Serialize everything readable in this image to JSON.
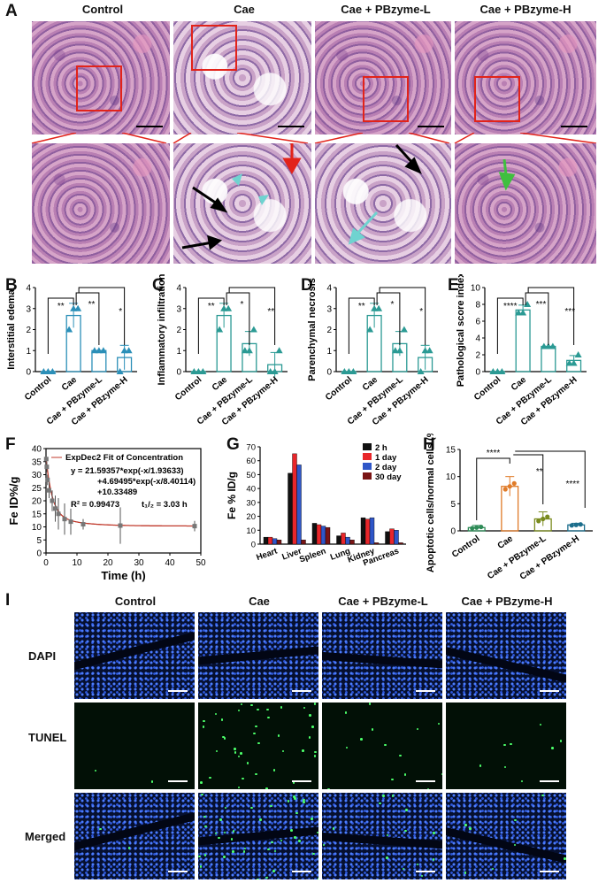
{
  "panelA": {
    "label": "A",
    "columns": [
      "Control",
      "Cae",
      "Cae + PBzyme-L",
      "Cae + PBzyme-H"
    ]
  },
  "panelB": {
    "label": "B",
    "ylabel": "Interstitial edema",
    "yticks": [
      "0",
      "1",
      "2",
      "3",
      "4"
    ],
    "categories": [
      "Control",
      "Cae",
      "Cae + PBzyme-L",
      "Cae + PBzyme-H"
    ],
    "sig": [
      "**",
      "**",
      "*"
    ]
  },
  "panelC": {
    "label": "C",
    "ylabel": "Inflammatory infiltration",
    "yticks": [
      "0",
      "1",
      "2",
      "3",
      "4"
    ],
    "categories": [
      "Control",
      "Cae",
      "Cae + PBzyme-L",
      "Cae + PBzyme-H"
    ],
    "sig": [
      "**",
      "*",
      "**"
    ]
  },
  "panelD": {
    "label": "D",
    "ylabel": "Parenchymal necrosis",
    "yticks": [
      "0",
      "1",
      "2",
      "3",
      "4"
    ],
    "categories": [
      "Control",
      "Cae",
      "Cae + PBzyme-L",
      "Cae + PBzyme-H"
    ],
    "sig": [
      "**",
      "*",
      "*"
    ]
  },
  "panelE": {
    "label": "E",
    "ylabel": "Pathological score index",
    "yticks": [
      "0",
      "2",
      "4",
      "6",
      "8",
      "10"
    ],
    "categories": [
      "Control",
      "Cae",
      "Cae + PBzyme-L",
      "Cae + PBzyme-H"
    ],
    "sig": [
      "****",
      "***",
      "***"
    ]
  },
  "panelF": {
    "label": "F",
    "ylabel": "Fe ID%/g",
    "xlabel": "Time (h)",
    "legend": "ExpDec2 Fit of Concentration",
    "eq1": "y = 21.59357*exp(-x/1.93633)",
    "eq2": "+4.69495*exp(-x/8.40114)",
    "eq3": "+10.33489",
    "r2": "R² = 0.99473",
    "thalf": "t₁/₂ = 3.03 h",
    "yticks": [
      "0",
      "5",
      "10",
      "15",
      "20",
      "25",
      "30",
      "35",
      "40"
    ],
    "xticks": [
      "0",
      "10",
      "20",
      "30",
      "40",
      "50"
    ]
  },
  "panelG": {
    "label": "G",
    "ylabel": "Fe % ID/g",
    "yticks": [
      "0",
      "10",
      "20",
      "30",
      "40",
      "50",
      "60",
      "70"
    ],
    "legend": [
      "2 h",
      "1 day",
      "2 day",
      "30 day"
    ],
    "colors": [
      "#111111",
      "#e8262a",
      "#2f56c8",
      "#7a1414"
    ]
  },
  "panelH": {
    "label": "H",
    "ylabel": "Apoptotic cells/normal cells (%)",
    "yticks": [
      "0",
      "5",
      "10",
      "15"
    ],
    "categories": [
      "Control",
      "Cae",
      "Cae + PBzyme-L",
      "Cae + PBzyme-H"
    ],
    "sig": [
      "****",
      "**",
      "****"
    ]
  },
  "panelI": {
    "label": "I",
    "columns": [
      "Control",
      "Cae",
      "Cae + PBzyme-L",
      "Cae + PBzyme-H"
    ],
    "rows": [
      "DAPI",
      "TUNEL",
      "Merged"
    ]
  },
  "chart_data": [
    {
      "type": "bar",
      "title": "",
      "ylabel": "Interstitial edema",
      "categories": [
        "Control",
        "Cae",
        "Cae + PBzyme-L",
        "Cae + PBzyme-H"
      ],
      "values": [
        0,
        2.67,
        1.0,
        0.67
      ],
      "errors": [
        0,
        0.58,
        0,
        0.58
      ],
      "ylim": [
        0,
        4
      ],
      "points": [
        [
          0,
          0,
          0
        ],
        [
          2,
          3,
          3
        ],
        [
          1,
          1,
          1
        ],
        [
          0,
          1,
          1
        ]
      ],
      "color": "#2b8fb8"
    },
    {
      "type": "bar",
      "title": "",
      "ylabel": "Inflammatory infiltration",
      "categories": [
        "Control",
        "Cae",
        "Cae + PBzyme-L",
        "Cae + PBzyme-H"
      ],
      "values": [
        0,
        2.67,
        1.33,
        0.33
      ],
      "errors": [
        0,
        0.58,
        0.58,
        0.58
      ],
      "ylim": [
        0,
        4
      ],
      "points": [
        [
          0,
          0,
          0
        ],
        [
          2,
          3,
          3
        ],
        [
          1,
          1,
          2
        ],
        [
          0,
          0,
          1
        ]
      ],
      "color": "#2b9a94"
    },
    {
      "type": "bar",
      "title": "",
      "ylabel": "Parenchymal necrosis",
      "categories": [
        "Control",
        "Cae",
        "Cae + PBzyme-L",
        "Cae + PBzyme-H"
      ],
      "values": [
        0,
        2.67,
        1.33,
        0.67
      ],
      "errors": [
        0,
        0.58,
        0.58,
        0.58
      ],
      "ylim": [
        0,
        4
      ],
      "points": [
        [
          0,
          0,
          0
        ],
        [
          2,
          3,
          3
        ],
        [
          1,
          1,
          2
        ],
        [
          0,
          1,
          1
        ]
      ],
      "color": "#2b9a94"
    },
    {
      "type": "bar",
      "title": "",
      "ylabel": "Pathological score index",
      "categories": [
        "Control",
        "Cae",
        "Cae + PBzyme-L",
        "Cae + PBzyme-H"
      ],
      "values": [
        0,
        7.33,
        3.0,
        1.33
      ],
      "errors": [
        0,
        0.58,
        0,
        0.58
      ],
      "ylim": [
        0,
        10
      ],
      "points": [
        [
          0,
          0,
          0
        ],
        [
          7,
          7,
          8
        ],
        [
          3,
          3,
          3
        ],
        [
          1,
          1,
          2
        ]
      ],
      "color": "#2b9a94"
    },
    {
      "type": "scatter",
      "title": "",
      "xlabel": "Time (h)",
      "ylabel": "Fe ID%/g",
      "x": [
        0.08,
        0.25,
        0.5,
        1,
        2,
        3,
        4,
        6,
        8,
        12,
        24,
        48
      ],
      "y": [
        36,
        33,
        28,
        24,
        20,
        17,
        15,
        13,
        12,
        11,
        10.5,
        10.3
      ],
      "errors": [
        1,
        2,
        2,
        3,
        4,
        5,
        6,
        6,
        5,
        2,
        7,
        2
      ],
      "xlim": [
        0,
        50
      ],
      "ylim": [
        0,
        40
      ]
    },
    {
      "type": "bar",
      "title": "",
      "ylabel": "Fe % ID/g",
      "categories": [
        "Heart",
        "Liver",
        "Spleen",
        "Lung",
        "Kidney",
        "Pancreas"
      ],
      "series": [
        {
          "name": "2 h",
          "values": [
            5,
            51,
            15,
            6,
            19,
            9
          ]
        },
        {
          "name": "1 day",
          "values": [
            5,
            65,
            14,
            8,
            18,
            11
          ]
        },
        {
          "name": "2 day",
          "values": [
            4,
            57,
            13,
            5,
            19,
            10
          ]
        },
        {
          "name": "30 day",
          "values": [
            3,
            3,
            12,
            3,
            1,
            1
          ]
        }
      ],
      "ylim": [
        0,
        70
      ]
    },
    {
      "type": "bar",
      "title": "",
      "ylabel": "Apoptotic cells/normal cells (%)",
      "categories": [
        "Control",
        "Cae",
        "Cae + PBzyme-L",
        "Cae + PBzyme-H"
      ],
      "values": [
        0.6,
        8.2,
        2.2,
        1.1
      ],
      "errors": [
        0.4,
        1.8,
        1.3,
        0.3
      ],
      "ylim": [
        0,
        15
      ],
      "colors": [
        "#2e8b57",
        "#e07b28",
        "#7a8b1e",
        "#1c6e8c"
      ]
    }
  ]
}
